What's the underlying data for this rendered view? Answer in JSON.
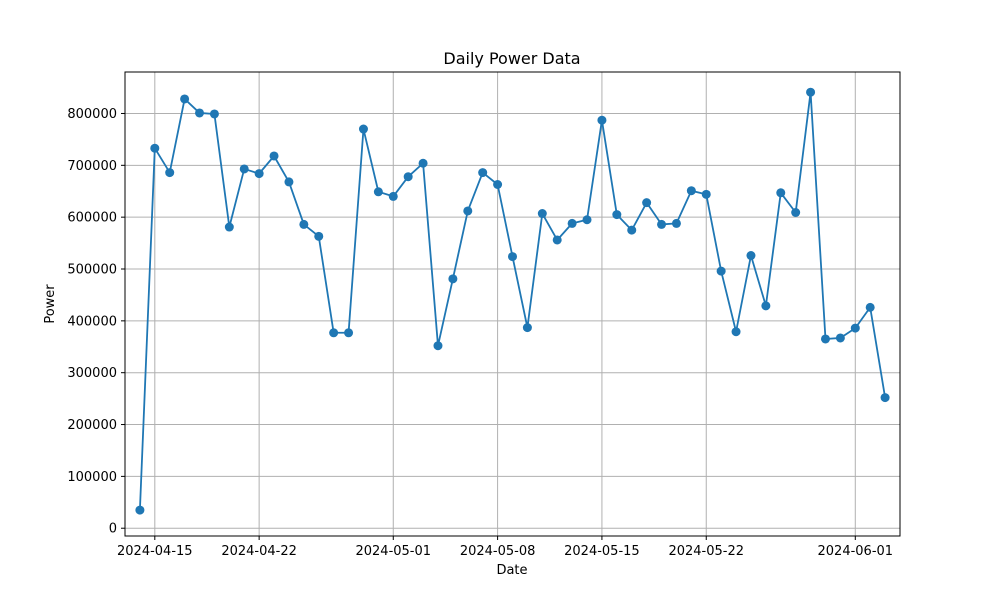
{
  "chart_data": {
    "type": "line",
    "title": "Daily Power Data",
    "xlabel": "Date",
    "ylabel": "Power",
    "grid": true,
    "marker": "circle",
    "color": "#1f77b4",
    "x_ticks": [
      "2024-04-15",
      "2024-04-22",
      "2024-05-01",
      "2024-05-08",
      "2024-05-15",
      "2024-05-22",
      "2024-06-01"
    ],
    "y_ticks": [
      0,
      100000,
      200000,
      300000,
      400000,
      500000,
      600000,
      700000,
      800000
    ],
    "ylim": [
      -15000,
      880000
    ],
    "xlim": [
      "2024-04-13",
      "2024-06-04"
    ],
    "series": [
      {
        "name": "",
        "x": [
          "2024-04-14",
          "2024-04-15",
          "2024-04-16",
          "2024-04-17",
          "2024-04-18",
          "2024-04-19",
          "2024-04-20",
          "2024-04-21",
          "2024-04-22",
          "2024-04-23",
          "2024-04-24",
          "2024-04-25",
          "2024-04-26",
          "2024-04-27",
          "2024-04-28",
          "2024-04-29",
          "2024-04-30",
          "2024-05-01",
          "2024-05-02",
          "2024-05-03",
          "2024-05-04",
          "2024-05-05",
          "2024-05-06",
          "2024-05-07",
          "2024-05-08",
          "2024-05-09",
          "2024-05-10",
          "2024-05-11",
          "2024-05-12",
          "2024-05-13",
          "2024-05-14",
          "2024-05-15",
          "2024-05-16",
          "2024-05-17",
          "2024-05-18",
          "2024-05-19",
          "2024-05-20",
          "2024-05-21",
          "2024-05-22",
          "2024-05-23",
          "2024-05-24",
          "2024-05-25",
          "2024-05-26",
          "2024-05-27",
          "2024-05-28",
          "2024-05-29",
          "2024-05-30",
          "2024-05-31",
          "2024-06-01",
          "2024-06-02",
          "2024-06-03"
        ],
        "values": [
          35000,
          733000,
          686000,
          828000,
          801000,
          799000,
          581000,
          693000,
          684000,
          718000,
          668000,
          586000,
          563000,
          377000,
          377000,
          770000,
          649000,
          640000,
          678000,
          704000,
          352000,
          481000,
          612000,
          686000,
          663000,
          524000,
          387000,
          607000,
          556000,
          588000,
          595000,
          787000,
          605000,
          575000,
          628000,
          586000,
          588000,
          651000,
          644000,
          496000,
          379000,
          526000,
          429000,
          647000,
          609000,
          841000,
          365000,
          367000,
          386000,
          426000,
          252000
        ]
      }
    ]
  }
}
